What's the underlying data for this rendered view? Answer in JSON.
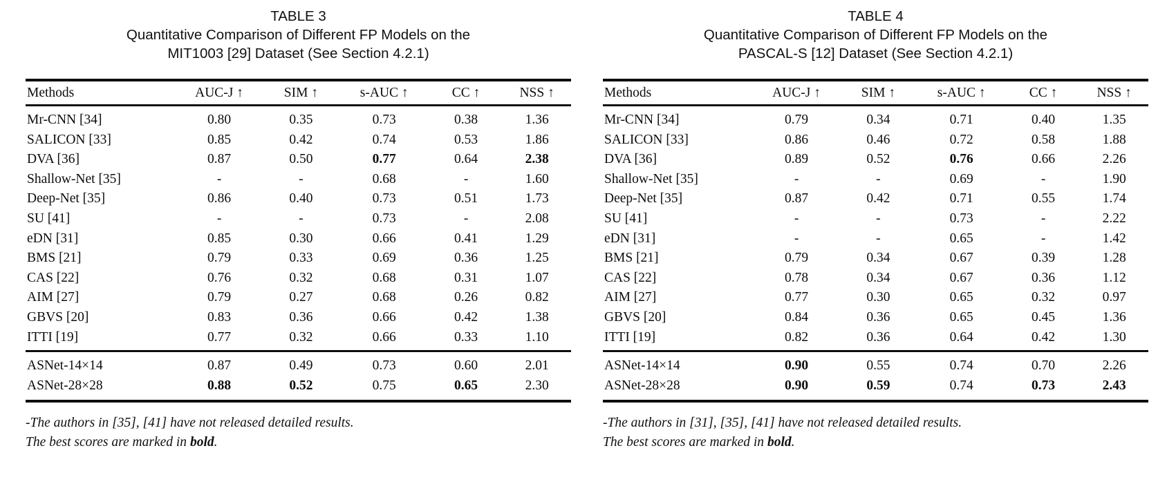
{
  "tables": [
    {
      "label": "TABLE 3",
      "caption_line1": "Quantitative Comparison of Different FP Models on the",
      "caption_line2": "MIT1003 [29] Dataset (See Section 4.2.1)",
      "columns": [
        "Methods",
        "AUC-J ↑",
        "SIM ↑",
        "s-AUC ↑",
        "CC ↑",
        "NSS ↑"
      ],
      "rows": [
        {
          "cells": [
            "Mr-CNN [34]",
            "0.80",
            "0.35",
            "0.73",
            "0.38",
            "1.36"
          ],
          "bold": []
        },
        {
          "cells": [
            "SALICON [33]",
            "0.85",
            "0.42",
            "0.74",
            "0.53",
            "1.86"
          ],
          "bold": []
        },
        {
          "cells": [
            "DVA [36]",
            "0.87",
            "0.50",
            "0.77",
            "0.64",
            "2.38"
          ],
          "bold": [
            3,
            5
          ]
        },
        {
          "cells": [
            "Shallow-Net [35]",
            "-",
            "-",
            "0.68",
            "-",
            "1.60"
          ],
          "bold": []
        },
        {
          "cells": [
            "Deep-Net [35]",
            "0.86",
            "0.40",
            "0.73",
            "0.51",
            "1.73"
          ],
          "bold": []
        },
        {
          "cells": [
            "SU [41]",
            "-",
            "-",
            "0.73",
            "-",
            "2.08"
          ],
          "bold": []
        },
        {
          "cells": [
            "eDN [31]",
            "0.85",
            "0.30",
            "0.66",
            "0.41",
            "1.29"
          ],
          "bold": []
        },
        {
          "cells": [
            "BMS [21]",
            "0.79",
            "0.33",
            "0.69",
            "0.36",
            "1.25"
          ],
          "bold": []
        },
        {
          "cells": [
            "CAS [22]",
            "0.76",
            "0.32",
            "0.68",
            "0.31",
            "1.07"
          ],
          "bold": []
        },
        {
          "cells": [
            "AIM [27]",
            "0.79",
            "0.27",
            "0.68",
            "0.26",
            "0.82"
          ],
          "bold": []
        },
        {
          "cells": [
            "GBVS [20]",
            "0.83",
            "0.36",
            "0.66",
            "0.42",
            "1.38"
          ],
          "bold": []
        },
        {
          "cells": [
            "ITTI [19]",
            "0.77",
            "0.32",
            "0.66",
            "0.33",
            "1.10"
          ],
          "bold": []
        }
      ],
      "asnet_rows": [
        {
          "cells": [
            "ASNet-14×14",
            "0.87",
            "0.49",
            "0.73",
            "0.60",
            "2.01"
          ],
          "bold": []
        },
        {
          "cells": [
            "ASNet-28×28",
            "0.88",
            "0.52",
            "0.75",
            "0.65",
            "2.30"
          ],
          "bold": [
            1,
            2,
            4
          ]
        }
      ],
      "footnote_line1": "-The authors in [35], [41] have not released detailed results.",
      "footnote_line2_prefix": "The best scores are marked in ",
      "footnote_line2_bold": "bold",
      "footnote_line2_suffix": "."
    },
    {
      "label": "TABLE 4",
      "caption_line1": "Quantitative Comparison of Different FP Models on the",
      "caption_line2": "PASCAL-S [12] Dataset (See Section 4.2.1)",
      "columns": [
        "Methods",
        "AUC-J ↑",
        "SIM ↑",
        "s-AUC ↑",
        "CC ↑",
        "NSS ↑"
      ],
      "rows": [
        {
          "cells": [
            "Mr-CNN [34]",
            "0.79",
            "0.34",
            "0.71",
            "0.40",
            "1.35"
          ],
          "bold": []
        },
        {
          "cells": [
            "SALICON [33]",
            "0.86",
            "0.46",
            "0.72",
            "0.58",
            "1.88"
          ],
          "bold": []
        },
        {
          "cells": [
            "DVA [36]",
            "0.89",
            "0.52",
            "0.76",
            "0.66",
            "2.26"
          ],
          "bold": [
            3
          ]
        },
        {
          "cells": [
            "Shallow-Net [35]",
            "-",
            "-",
            "0.69",
            "-",
            "1.90"
          ],
          "bold": []
        },
        {
          "cells": [
            "Deep-Net [35]",
            "0.87",
            "0.42",
            "0.71",
            "0.55",
            "1.74"
          ],
          "bold": []
        },
        {
          "cells": [
            "SU [41]",
            "-",
            "-",
            "0.73",
            "-",
            "2.22"
          ],
          "bold": []
        },
        {
          "cells": [
            "eDN [31]",
            "-",
            "-",
            "0.65",
            "-",
            "1.42"
          ],
          "bold": []
        },
        {
          "cells": [
            "BMS [21]",
            "0.79",
            "0.34",
            "0.67",
            "0.39",
            "1.28"
          ],
          "bold": []
        },
        {
          "cells": [
            "CAS [22]",
            "0.78",
            "0.34",
            "0.67",
            "0.36",
            "1.12"
          ],
          "bold": []
        },
        {
          "cells": [
            "AIM [27]",
            "0.77",
            "0.30",
            "0.65",
            "0.32",
            "0.97"
          ],
          "bold": []
        },
        {
          "cells": [
            "GBVS [20]",
            "0.84",
            "0.36",
            "0.65",
            "0.45",
            "1.36"
          ],
          "bold": []
        },
        {
          "cells": [
            "ITTI [19]",
            "0.82",
            "0.36",
            "0.64",
            "0.42",
            "1.30"
          ],
          "bold": []
        }
      ],
      "asnet_rows": [
        {
          "cells": [
            "ASNet-14×14",
            "0.90",
            "0.55",
            "0.74",
            "0.70",
            "2.26"
          ],
          "bold": [
            1
          ]
        },
        {
          "cells": [
            "ASNet-28×28",
            "0.90",
            "0.59",
            "0.74",
            "0.73",
            "2.43"
          ],
          "bold": [
            1,
            2,
            4,
            5
          ]
        }
      ],
      "footnote_line1": "-The authors in [31], [35], [41] have not released detailed results.",
      "footnote_line2_prefix": "The best scores are marked in ",
      "footnote_line2_bold": "bold",
      "footnote_line2_suffix": "."
    }
  ]
}
